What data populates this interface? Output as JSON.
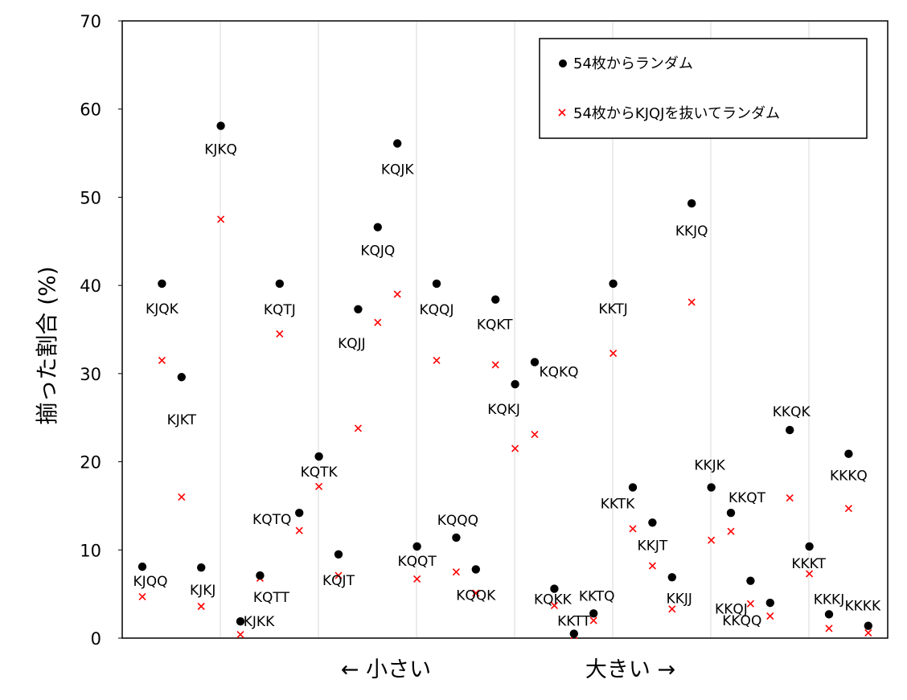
{
  "chart_data": {
    "type": "scatter",
    "title": "",
    "xlabel": "",
    "ylabel": "揃った割合 (%)",
    "ylim": [
      0,
      70
    ],
    "yticks": [
      0,
      10,
      20,
      30,
      40,
      50,
      60,
      70
    ],
    "grid": "vertical",
    "legend_position": "top-right",
    "bottom_left_label": "← 小さい",
    "bottom_right_label": "大きい →",
    "categories": [
      "KJQQ",
      "KJQK",
      "KJKT",
      "KJKJ",
      "KJKQ",
      "KJKK",
      "KQTT",
      "KQTJ",
      "KQTQ",
      "KQTK",
      "KQJT",
      "KQJJ",
      "KQJQ",
      "KQJK",
      "KQQT",
      "KQQJ",
      "KQQQ",
      "KQQK",
      "KQKT",
      "KQKJ",
      "KQKQ",
      "KQKK",
      "KKTT",
      "KKTQ",
      "KKTJ",
      "KKTK",
      "KKJT",
      "KKJJ",
      "KKJQ",
      "KKJK",
      "KKQT",
      "KKQJ",
      "KKQQ",
      "KKQK",
      "KKKT",
      "KKKJ",
      "KKKQ",
      "KKKK"
    ],
    "series": [
      {
        "name": "54枚からランダム",
        "marker": "circle",
        "color": "#000000",
        "values": [
          8.1,
          40.2,
          29.6,
          8.0,
          58.1,
          1.9,
          7.1,
          40.2,
          14.2,
          20.6,
          9.5,
          37.3,
          46.6,
          56.1,
          10.4,
          40.2,
          11.4,
          7.8,
          38.4,
          28.8,
          31.3,
          5.6,
          0.5,
          2.8,
          40.2,
          17.1,
          13.1,
          6.9,
          49.3,
          17.1,
          14.2,
          6.5,
          4.0,
          23.6,
          10.4,
          2.7,
          20.9,
          1.4
        ]
      },
      {
        "name": "54枚からKJQJを抜いてランダム",
        "marker": "x",
        "color": "#ff0000",
        "values": [
          4.7,
          31.5,
          16.0,
          3.6,
          47.5,
          0.4,
          6.8,
          34.5,
          12.2,
          17.2,
          7.1,
          23.8,
          35.8,
          39.0,
          6.7,
          31.5,
          7.5,
          5.1,
          31.0,
          21.5,
          23.1,
          3.7,
          0.3,
          2.0,
          32.3,
          12.4,
          8.2,
          3.3,
          38.1,
          11.1,
          12.1,
          3.9,
          2.5,
          15.9,
          7.3,
          1.1,
          14.7,
          0.6
        ]
      }
    ]
  }
}
